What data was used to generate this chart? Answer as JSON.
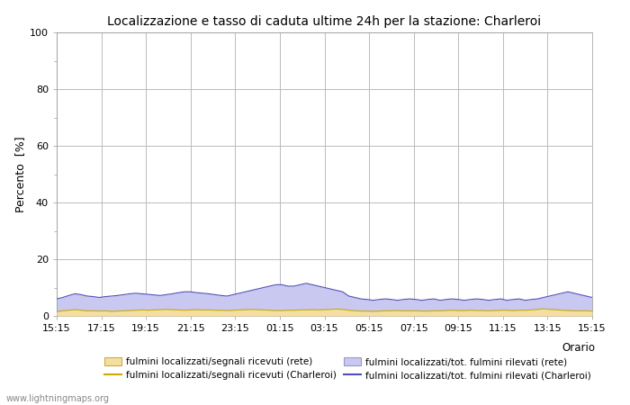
{
  "title": "Localizzazione e tasso di caduta ultime 24h per la stazione: Charleroi",
  "xlabel": "Orario",
  "ylabel": "Percento  [%]",
  "ylim": [
    0,
    100
  ],
  "yticks_major": [
    0,
    20,
    40,
    60,
    80,
    100
  ],
  "yticks_minor": [
    10,
    30,
    50,
    70,
    90
  ],
  "x_labels": [
    "15:15",
    "17:15",
    "19:15",
    "21:15",
    "23:15",
    "01:15",
    "03:15",
    "05:15",
    "07:15",
    "09:15",
    "11:15",
    "13:15",
    "15:15"
  ],
  "background_color": "#ffffff",
  "plot_bg_color": "#ffffff",
  "grid_color": "#bbbbbb",
  "watermark": "www.lightningmaps.org",
  "legend": [
    {
      "label": "fulmini localizzati/segnali ricevuti (rete)",
      "type": "fill",
      "color": "#f5dfa0",
      "edgecolor": "#ccaa44"
    },
    {
      "label": "fulmini localizzati/segnali ricevuti (Charleroi)",
      "type": "line",
      "color": "#ccaa00"
    },
    {
      "label": "fulmini localizzati/tot. fulmini rilevati (rete)",
      "type": "fill",
      "color": "#c8c8f0",
      "edgecolor": "#9898cc"
    },
    {
      "label": "fulmini localizzati/tot. fulmini rilevati (Charleroi)",
      "type": "line",
      "color": "#5050b8"
    }
  ],
  "fill_rete_segnali": [
    1.5,
    1.8,
    2.0,
    2.2,
    2.0,
    1.8,
    1.8,
    1.7,
    1.8,
    1.6,
    1.7,
    1.8,
    1.9,
    2.0,
    2.1,
    2.0,
    2.1,
    2.2,
    2.3,
    2.2,
    2.1,
    2.0,
    2.1,
    2.2,
    2.1,
    2.1,
    2.0,
    2.0,
    1.9,
    2.0,
    2.1,
    2.2,
    2.3,
    2.2,
    2.1,
    2.0,
    1.9,
    1.9,
    2.0,
    2.0,
    2.1,
    2.1,
    2.2,
    2.1,
    2.2,
    2.3,
    2.4,
    2.3,
    2.0,
    1.8,
    1.7,
    1.7,
    1.6,
    1.7,
    1.8,
    1.8,
    1.9,
    1.8,
    1.8,
    1.8,
    1.7,
    1.7,
    1.8,
    1.8,
    1.9,
    2.0,
    1.9,
    1.9,
    2.0,
    1.9,
    1.9,
    1.8,
    1.9,
    2.0,
    2.0,
    1.9,
    2.0,
    2.0,
    2.1,
    2.3,
    2.5,
    2.3,
    2.2,
    2.0,
    1.9,
    1.8,
    1.8,
    1.8,
    1.7
  ],
  "fill_rete_tot": [
    6.0,
    6.5,
    7.2,
    7.8,
    7.5,
    7.0,
    6.8,
    6.5,
    6.8,
    7.0,
    7.2,
    7.5,
    7.8,
    8.0,
    7.8,
    7.6,
    7.4,
    7.2,
    7.5,
    7.8,
    8.2,
    8.5,
    8.5,
    8.2,
    8.0,
    7.8,
    7.5,
    7.2,
    7.0,
    7.5,
    8.0,
    8.5,
    9.0,
    9.5,
    10.0,
    10.5,
    11.0,
    11.0,
    10.5,
    10.5,
    11.0,
    11.5,
    11.0,
    10.5,
    10.0,
    9.5,
    9.0,
    8.5,
    7.0,
    6.5,
    6.0,
    5.8,
    5.5,
    5.8,
    6.0,
    5.8,
    5.5,
    5.8,
    6.0,
    5.8,
    5.5,
    5.8,
    6.0,
    5.5,
    5.8,
    6.0,
    5.8,
    5.5,
    5.8,
    6.0,
    5.8,
    5.5,
    5.8,
    6.0,
    5.5,
    5.8,
    6.0,
    5.5,
    5.8,
    6.0,
    6.5,
    7.0,
    7.5,
    8.0,
    8.5,
    8.0,
    7.5,
    7.0,
    6.5
  ],
  "n_points": 89
}
